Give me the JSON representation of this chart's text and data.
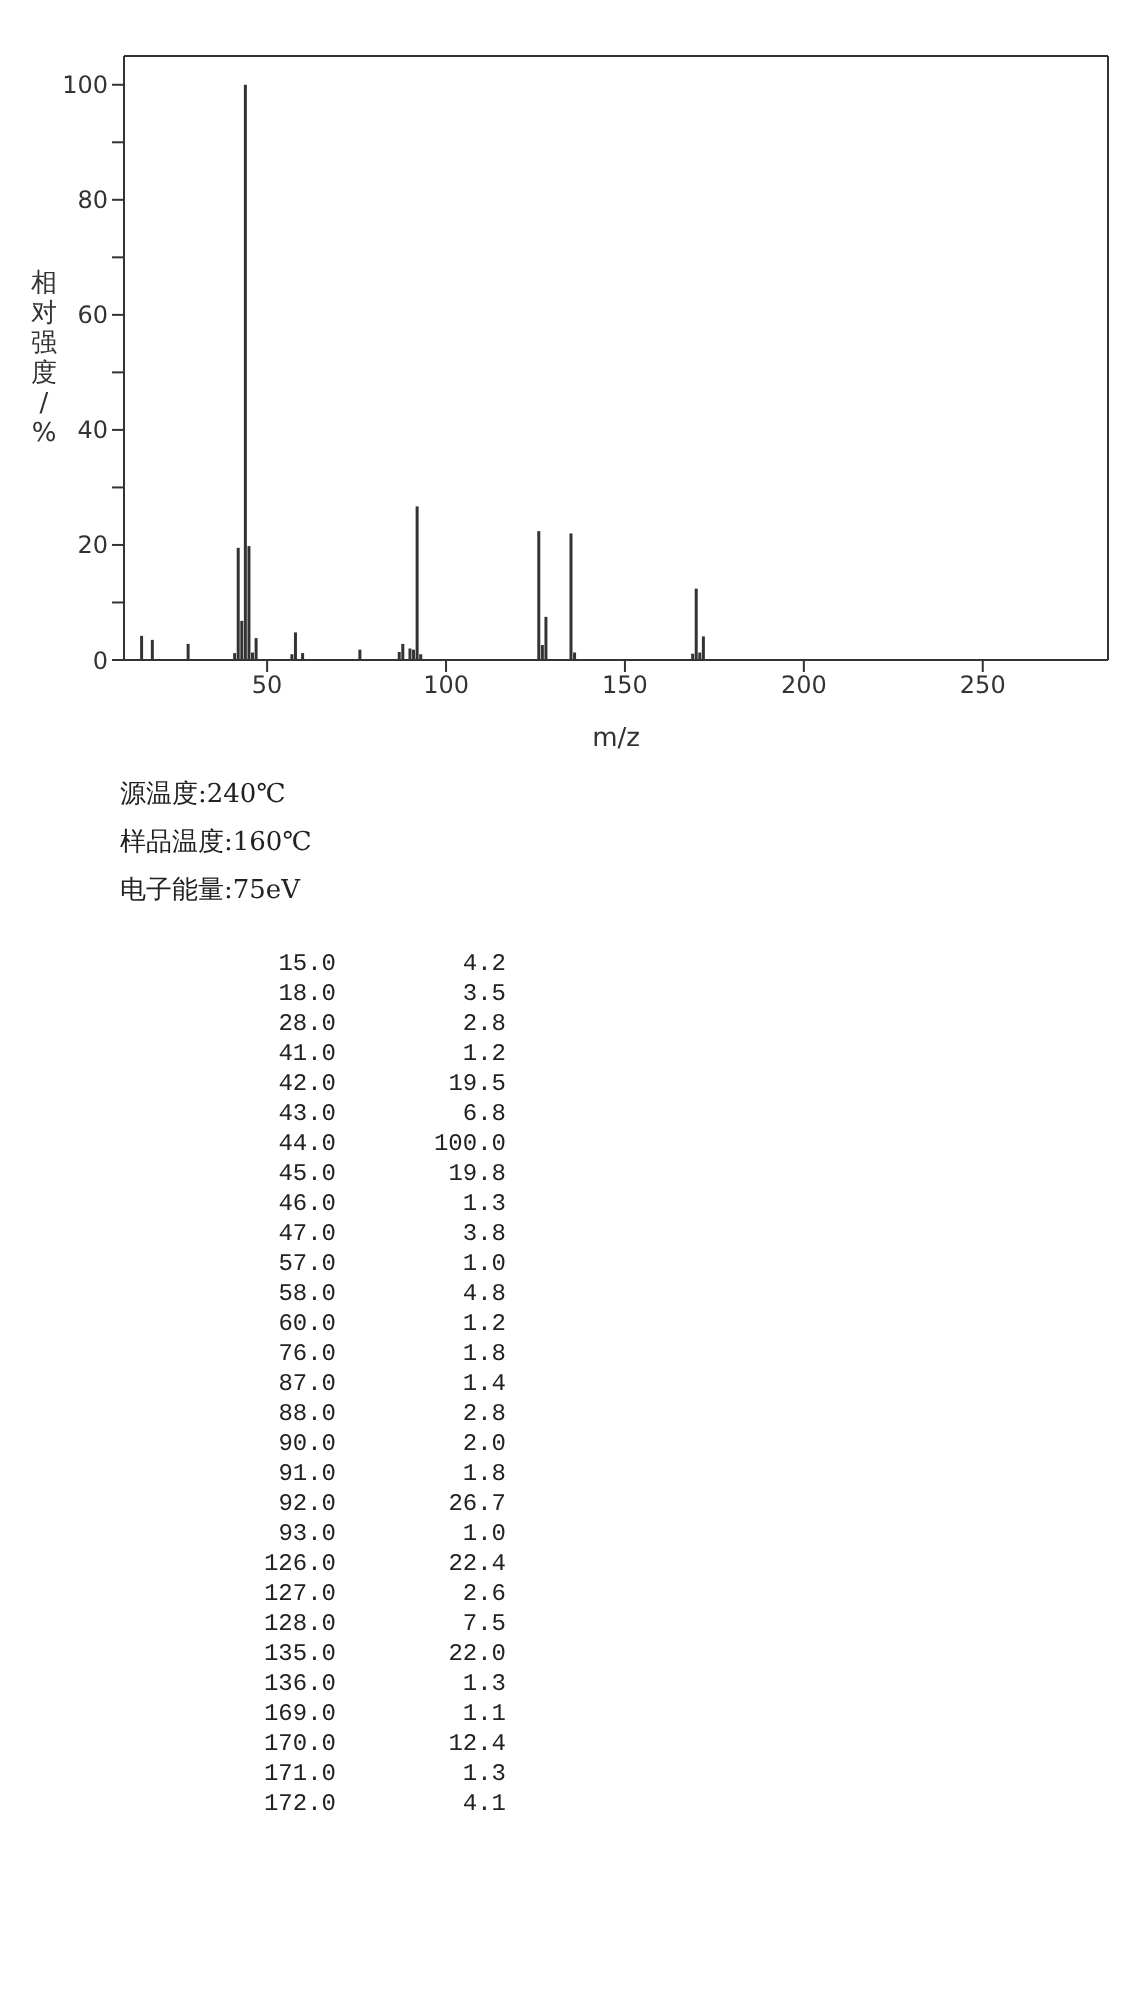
{
  "chart_data": {
    "type": "bar",
    "xlabel": "m/z",
    "ylabel": "相对强度/%",
    "x": [
      15,
      18,
      28,
      41,
      42,
      43,
      44,
      45,
      46,
      47,
      57,
      58,
      60,
      76,
      87,
      88,
      90,
      91,
      92,
      93,
      126,
      127,
      128,
      135,
      136,
      169,
      170,
      171,
      172
    ],
    "values": [
      4.2,
      3.5,
      2.8,
      1.2,
      19.5,
      6.8,
      100.0,
      19.8,
      1.3,
      3.8,
      1.0,
      4.8,
      1.2,
      1.8,
      1.4,
      2.8,
      2.0,
      1.8,
      26.7,
      1.0,
      22.4,
      2.6,
      7.5,
      22.0,
      1.3,
      1.1,
      12.4,
      1.3,
      4.1
    ],
    "color": "#333333",
    "xlim": [
      10,
      285
    ],
    "ylim": [
      0,
      105
    ],
    "xticks": [
      50,
      100,
      150,
      200,
      250
    ],
    "yticks": [
      0,
      {
        "value": 10,
        "label": null
      },
      20,
      {
        "value": 30,
        "label": null
      },
      40,
      {
        "value": 50,
        "label": null
      },
      60,
      {
        "value": 70,
        "label": null
      },
      80,
      {
        "value": 90,
        "label": null
      },
      100
    ],
    "grid": false,
    "legend": false,
    "annotations": [
      "源温度:240℃",
      "样品温度:160℃",
      "电子能量:75eV",
      "15.0",
      "4.2",
      "18.0",
      "3.5",
      "28.0",
      "2.8",
      "41.0",
      "1.2",
      "42.0",
      "19.5",
      "43.0",
      "6.8",
      "44.0",
      "100.0",
      "45.0",
      "19.8",
      "46.0",
      "1.3",
      "47.0",
      "3.8",
      "57.0",
      "1.0",
      "58.0",
      "4.8",
      "60.0",
      "1.2",
      "76.0",
      "1.8",
      "87.0",
      "1.4",
      "88.0",
      "2.8",
      "90.0",
      "2.0",
      "91.0",
      "1.8",
      "92.0",
      "26.7",
      "93.0",
      "1.0",
      "126.0",
      "22.4",
      "127.0",
      "2.6",
      "128.0",
      "7.5",
      "135.0",
      "22.0",
      "136.0",
      "1.3",
      "169.0",
      "1.1",
      "170.0",
      "12.4",
      "171.0",
      "1.3",
      "172.0",
      "4.1"
    ]
  }
}
